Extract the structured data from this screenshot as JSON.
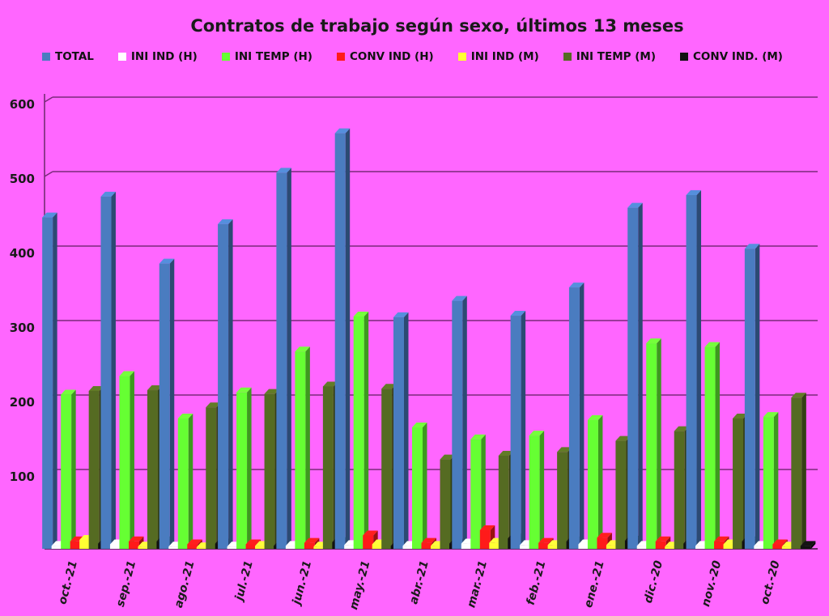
{
  "chart_data": {
    "type": "bar",
    "title": "Contratos de trabajo según sexo, últimos 13 meses",
    "xlabel": "",
    "ylabel": "",
    "ylim": [
      0,
      600
    ],
    "yticks": [
      100,
      200,
      300,
      400,
      500,
      600
    ],
    "grid": true,
    "legend_position": "top",
    "categories": [
      "oct.-21",
      "sep.-21",
      "ago.-21",
      "jul.-21",
      "jun.-21",
      "may.-21",
      "abr.-21",
      "mar.-21",
      "feb.-21",
      "ene.-21",
      "dic.-20",
      "nov.-20",
      "oct.-20"
    ],
    "series": [
      {
        "name": "TOTAL",
        "color": "#4a7cc0",
        "values": [
          445,
          473,
          383,
          436,
          505,
          558,
          311,
          333,
          313,
          351,
          458,
          475,
          403
        ]
      },
      {
        "name": "INI IND (H)",
        "color": "#ffffff",
        "values": [
          4,
          6,
          3,
          3,
          4,
          5,
          4,
          7,
          5,
          6,
          4,
          4,
          4
        ]
      },
      {
        "name": "INI TEMP (H)",
        "color": "#66ff33",
        "values": [
          207,
          232,
          175,
          210,
          265,
          312,
          163,
          147,
          152,
          173,
          276,
          271,
          177
        ]
      },
      {
        "name": "CONV IND (H)",
        "color": "#ff1a1a",
        "values": [
          10,
          10,
          6,
          6,
          8,
          18,
          8,
          25,
          8,
          15,
          10,
          10,
          6
        ]
      },
      {
        "name": "INI IND (M)",
        "color": "#ffff33",
        "values": [
          12,
          3,
          2,
          4,
          3,
          6,
          4,
          8,
          5,
          5,
          3,
          6,
          3
        ]
      },
      {
        "name": "INI TEMP  (M)",
        "color": "#556b22",
        "values": [
          212,
          213,
          190,
          208,
          218,
          215,
          120,
          125,
          130,
          145,
          158,
          175,
          203
        ]
      },
      {
        "name": "CONV IND.  (M)",
        "color": "#111111",
        "values": [
          7,
          10,
          7,
          4,
          9,
          4,
          7,
          14,
          10,
          11,
          7,
          10,
          4
        ]
      }
    ]
  }
}
